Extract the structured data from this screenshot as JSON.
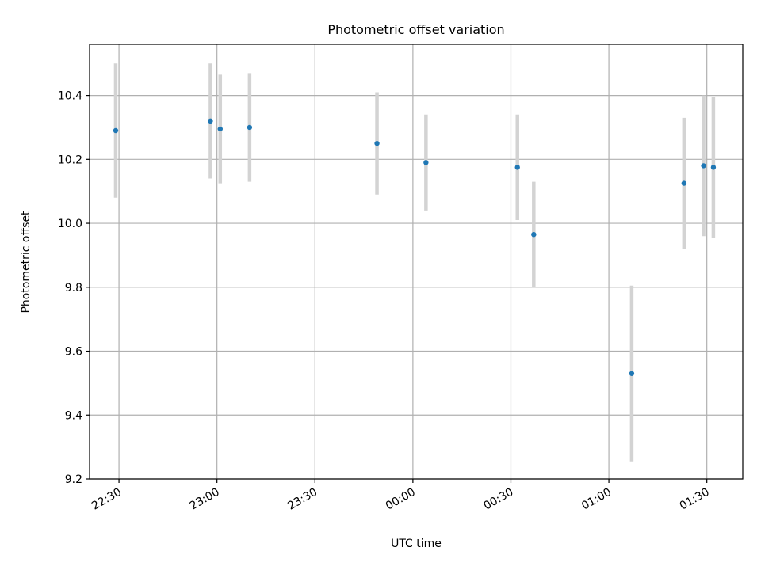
{
  "chart_data": {
    "type": "scatter",
    "title": "Photometric offset variation",
    "xlabel": "UTC time",
    "ylabel": "Photometric offset",
    "x_ticks": [
      "22:30",
      "23:00",
      "23:30",
      "00:00",
      "00:30",
      "01:00",
      "01:30"
    ],
    "y_ticks": [
      "9.2",
      "9.4",
      "9.6",
      "9.8",
      "10.0",
      "10.2",
      "10.4"
    ],
    "x_range": [
      "22:21",
      "01:41"
    ],
    "ylim": [
      9.2,
      10.56
    ],
    "grid": true,
    "series": [
      {
        "marker_color": "#1f77b4",
        "errorbar_color": "#d3d3d3",
        "points": [
          {
            "x": "22:29",
            "y": 10.29,
            "yerr": 0.21
          },
          {
            "x": "22:58",
            "y": 10.32,
            "yerr": 0.18
          },
          {
            "x": "23:01",
            "y": 10.295,
            "yerr": 0.17
          },
          {
            "x": "23:10",
            "y": 10.3,
            "yerr": 0.17
          },
          {
            "x": "23:49",
            "y": 10.25,
            "yerr": 0.16
          },
          {
            "x": "00:04",
            "y": 10.19,
            "yerr": 0.15
          },
          {
            "x": "00:32",
            "y": 10.175,
            "yerr": 0.165
          },
          {
            "x": "00:37",
            "y": 9.965,
            "yerr": 0.165
          },
          {
            "x": "01:07",
            "y": 9.53,
            "yerr": 0.275
          },
          {
            "x": "01:23",
            "y": 10.125,
            "yerr": 0.205
          },
          {
            "x": "01:29",
            "y": 10.18,
            "yerr": 0.22
          },
          {
            "x": "01:32",
            "y": 10.175,
            "yerr": 0.22
          }
        ]
      }
    ]
  }
}
